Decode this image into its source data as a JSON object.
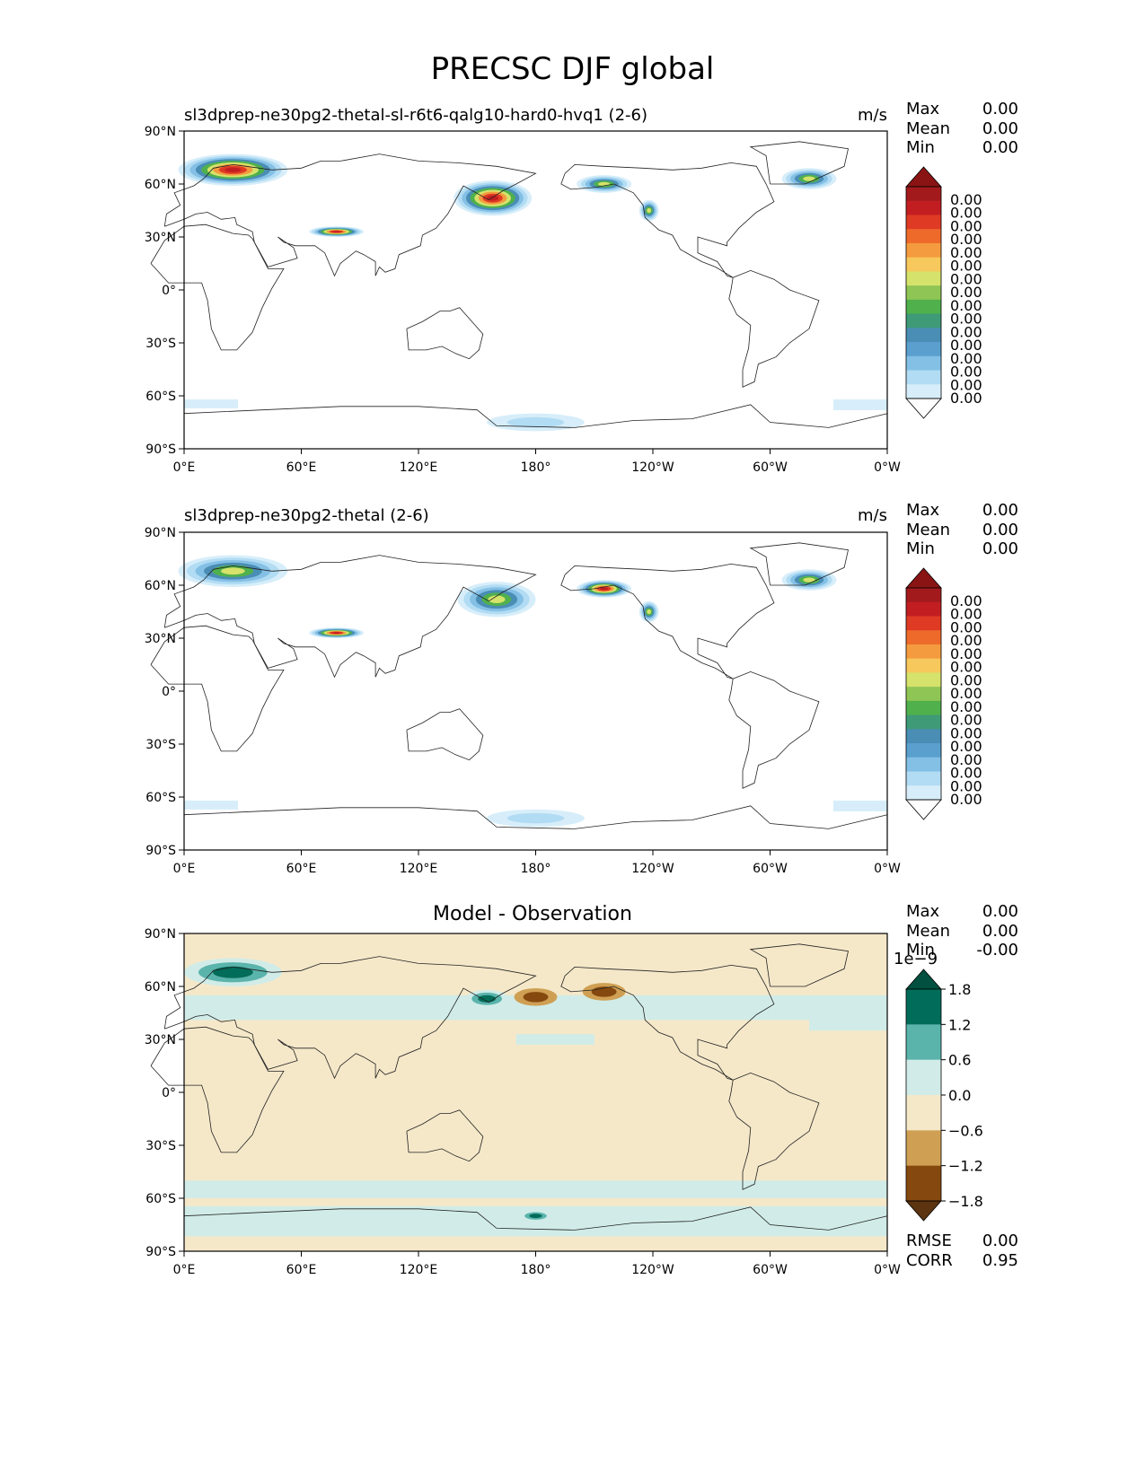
{
  "suptitle": "PRECSC DJF global",
  "chart_data": [
    {
      "type": "heatmap",
      "projection": "PlateCarree, central longitude 180",
      "title": "sl3dprep-ne30pg2-thetal-sl-r6t6-qalg10-hard0-hvq1 (2-6)",
      "units": "m/s",
      "stats": [
        {
          "label": "Max",
          "value": "0.00"
        },
        {
          "label": "Mean",
          "value": "0.00"
        },
        {
          "label": "Min",
          "value": "0.00"
        }
      ],
      "lat_ticks": [
        "90°N",
        "60°N",
        "30°N",
        "0°",
        "30°S",
        "60°S",
        "90°S"
      ],
      "lon_ticks": [
        "0°E",
        "60°E",
        "120°E",
        "180°",
        "120°W",
        "60°W",
        "0°W"
      ],
      "colorbar": {
        "extend": "both",
        "labels": [
          "0.00",
          "0.00",
          "0.00",
          "0.00",
          "0.00",
          "0.00",
          "0.00",
          "0.00",
          "0.00",
          "0.00",
          "0.00",
          "0.00",
          "0.00",
          "0.00",
          "0.00",
          "0.00"
        ],
        "colors": [
          "#ffffff",
          "#d7eefa",
          "#b2dcf3",
          "#84c0e6",
          "#5b9fcf",
          "#4a8db5",
          "#3f9a77",
          "#4fb04c",
          "#8fc555",
          "#d5e26b",
          "#f7c85c",
          "#f49b3f",
          "#ee6a2b",
          "#df3a24",
          "#c21e22",
          "#a21a1c",
          "#8a1414"
        ]
      },
      "precip_regions": [
        {
          "name": "Scandinavia",
          "lon": 25,
          "lat": 68,
          "peak": "high"
        },
        {
          "name": "Kamchatka / NW Pacific",
          "lon": 158,
          "lat": 52,
          "peak": "high"
        },
        {
          "name": "Tibetan Plateau",
          "lon": 78,
          "lat": 33,
          "peak": "high"
        },
        {
          "name": "Alaska coast",
          "lon": -145,
          "lat": 60,
          "peak": "medium"
        },
        {
          "name": "Pacific Northwest",
          "lon": -122,
          "lat": 45,
          "peak": "medium"
        },
        {
          "name": "Greenland",
          "lon": -40,
          "lat": 63,
          "peak": "medium"
        },
        {
          "name": "Southern Ocean",
          "lon": 180,
          "lat": -75,
          "peak": "low"
        }
      ]
    },
    {
      "type": "heatmap",
      "projection": "PlateCarree, central longitude 180",
      "title": "sl3dprep-ne30pg2-thetal (2-6)",
      "units": "m/s",
      "stats": [
        {
          "label": "Max",
          "value": "0.00"
        },
        {
          "label": "Mean",
          "value": "0.00"
        },
        {
          "label": "Min",
          "value": "0.00"
        }
      ],
      "lat_ticks": [
        "90°N",
        "60°N",
        "30°N",
        "0°",
        "30°S",
        "60°S",
        "90°S"
      ],
      "lon_ticks": [
        "0°E",
        "60°E",
        "120°E",
        "180°",
        "120°W",
        "60°W",
        "0°W"
      ],
      "colorbar": {
        "extend": "both",
        "labels": [
          "0.00",
          "0.00",
          "0.00",
          "0.00",
          "0.00",
          "0.00",
          "0.00",
          "0.00",
          "0.00",
          "0.00",
          "0.00",
          "0.00",
          "0.00",
          "0.00",
          "0.00",
          "0.00"
        ],
        "colors": [
          "#ffffff",
          "#d7eefa",
          "#b2dcf3",
          "#84c0e6",
          "#5b9fcf",
          "#4a8db5",
          "#3f9a77",
          "#4fb04c",
          "#8fc555",
          "#d5e26b",
          "#f7c85c",
          "#f49b3f",
          "#ee6a2b",
          "#df3a24",
          "#c21e22",
          "#a21a1c",
          "#8a1414"
        ]
      },
      "precip_regions": [
        {
          "name": "Scandinavia",
          "lon": 25,
          "lat": 68,
          "peak": "medium"
        },
        {
          "name": "Kamchatka / NW Pacific",
          "lon": 160,
          "lat": 52,
          "peak": "medium"
        },
        {
          "name": "Tibetan Plateau",
          "lon": 78,
          "lat": 33,
          "peak": "high"
        },
        {
          "name": "Alaska coast",
          "lon": -145,
          "lat": 58,
          "peak": "high"
        },
        {
          "name": "Pacific Northwest",
          "lon": -122,
          "lat": 45,
          "peak": "medium"
        },
        {
          "name": "Greenland",
          "lon": -40,
          "lat": 63,
          "peak": "medium"
        },
        {
          "name": "Southern Ocean",
          "lon": 180,
          "lat": -72,
          "peak": "low"
        }
      ]
    },
    {
      "type": "heatmap",
      "projection": "PlateCarree, central longitude 180",
      "title": "Model - Observation",
      "stats": [
        {
          "label": "Max",
          "value": "0.00"
        },
        {
          "label": "Mean",
          "value": "0.00"
        },
        {
          "label": "Min",
          "value": "-0.00"
        }
      ],
      "bottom_stats": [
        {
          "label": "RMSE",
          "value": "0.00"
        },
        {
          "label": "CORR",
          "value": "0.95"
        }
      ],
      "lat_ticks": [
        "90°N",
        "60°N",
        "30°N",
        "0°",
        "30°S",
        "60°S",
        "90°S"
      ],
      "lon_ticks": [
        "0°E",
        "60°E",
        "120°E",
        "180°",
        "120°W",
        "60°W",
        "0°W"
      ],
      "colorbar": {
        "extend": "both",
        "scale_label": "1e−9",
        "labels": [
          "1.8",
          "1.2",
          "0.6",
          "0.0",
          "−0.6",
          "−1.2",
          "−1.8"
        ],
        "colors": [
          "#02503f",
          "#016c59",
          "#5ab4ac",
          "#d1ece8",
          "#f5e8c9",
          "#cfa054",
          "#85490f",
          "#5c3410"
        ]
      },
      "diff_regions": [
        {
          "name": "Scandinavia",
          "lon": 25,
          "lat": 68,
          "sign": "positive"
        },
        {
          "name": "Kamchatka / NW Pacific",
          "lon": 155,
          "lat": 53,
          "sign": "positive"
        },
        {
          "name": "Sea of Okhotsk",
          "lon": 180,
          "lat": 54,
          "sign": "negative"
        },
        {
          "name": "Alaska coast",
          "lon": -145,
          "lat": 57,
          "sign": "negative"
        },
        {
          "name": "Southern Ocean",
          "lon": 180,
          "lat": -70,
          "sign": "positive"
        }
      ]
    }
  ]
}
